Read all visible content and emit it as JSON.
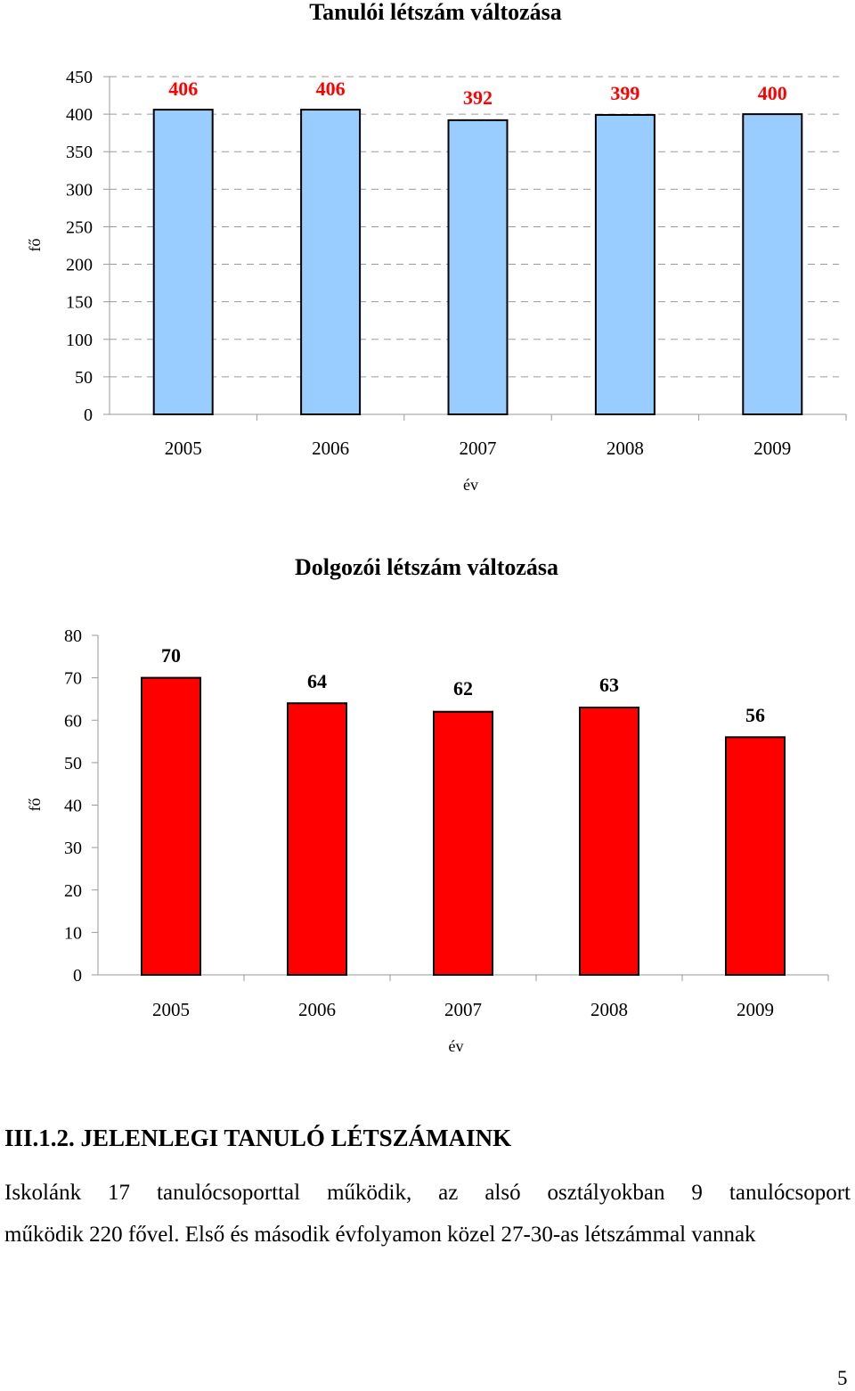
{
  "chart_data": [
    {
      "type": "bar",
      "title": "Tanulói létszám változása",
      "xlabel": "év",
      "ylabel": "fő",
      "categories": [
        "2005",
        "2006",
        "2007",
        "2008",
        "2009"
      ],
      "values": [
        406,
        406,
        392,
        399,
        400
      ],
      "value_labels": [
        "406",
        "406",
        "392",
        "399",
        "400"
      ],
      "yticks": [
        "0",
        "50",
        "100",
        "150",
        "200",
        "250",
        "300",
        "350",
        "400",
        "450"
      ],
      "ylim": [
        0,
        450
      ],
      "grid": "dashed horizontal",
      "bar_color": "#99ccff",
      "label_color": "#ff0000"
    },
    {
      "type": "bar",
      "title": "Dolgozói létszám változása",
      "xlabel": "év",
      "ylabel": "fő",
      "categories": [
        "2005",
        "2006",
        "2007",
        "2008",
        "2009"
      ],
      "values": [
        70,
        64,
        62,
        63,
        56
      ],
      "value_labels": [
        "70",
        "64",
        "62",
        "63",
        "56"
      ],
      "yticks": [
        "0",
        "10",
        "20",
        "30",
        "40",
        "50",
        "60",
        "70",
        "80"
      ],
      "ylim": [
        0,
        80
      ],
      "grid": "none",
      "bar_color": "#ff0000",
      "label_color": "#000000"
    }
  ],
  "section": {
    "heading": "III.1.2. JELENLEGI TANULÓ LÉTSZÁMAINK",
    "line1": "Iskolánk 17 tanulócsoporttal működik, az alsó osztályokban 9 tanulócsoport",
    "line2": "működik 220 fővel. Első és második évfolyamon közel 27-30-as létszámmal vannak"
  },
  "page_number": "5"
}
